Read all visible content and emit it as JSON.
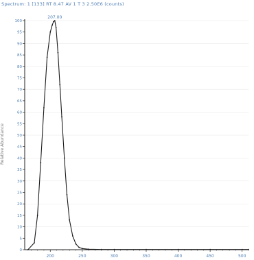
{
  "header": {
    "text": "Spectrum: 1 [133] RT 8.47 AV 1 T 3 2.50E6 (counts)"
  },
  "chart_data": {
    "type": "line",
    "title": "",
    "xlabel": "",
    "ylabel": "Relative Abundance",
    "xlim": [
      160,
      510
    ],
    "ylim": [
      0,
      100
    ],
    "x_ticks": [
      200,
      250,
      300,
      350,
      400,
      450,
      500
    ],
    "x_tick_labels": [
      "200",
      "250",
      "300",
      "350",
      "400",
      "450",
      "500"
    ],
    "y_ticks": [
      0,
      5,
      10,
      15,
      20,
      25,
      30,
      35,
      40,
      45,
      50,
      55,
      60,
      65,
      70,
      75,
      80,
      85,
      90,
      95,
      100
    ],
    "y_tick_labels": [
      "0",
      "5",
      "10",
      "15",
      "20",
      "25",
      "30",
      "35",
      "40",
      "45",
      "50",
      "55",
      "60",
      "65",
      "70",
      "75",
      "80",
      "85",
      "90",
      "95",
      "100"
    ],
    "peak_label": "207.00",
    "series": [
      {
        "x": [
          165,
          175,
          180,
          185,
          190,
          195,
          200,
          203,
          205,
          207,
          209,
          212,
          215,
          218,
          222,
          226,
          230,
          235,
          240,
          245,
          250,
          260,
          280,
          300,
          350,
          400,
          450,
          500,
          510
        ],
        "values": [
          0,
          3,
          15,
          38,
          62,
          84,
          95,
          98,
          99.5,
          100,
          97,
          86,
          72,
          58,
          40,
          24,
          13,
          6,
          2.5,
          1.0,
          0.5,
          0.2,
          0.1,
          0.1,
          0.1,
          0.1,
          0.1,
          0.1,
          0.1
        ]
      }
    ],
    "colors": {
      "line": "#1a1a1a",
      "axis": "#222222",
      "tick_label": "#4f7fb5",
      "grid": "#e6e6e6"
    }
  }
}
